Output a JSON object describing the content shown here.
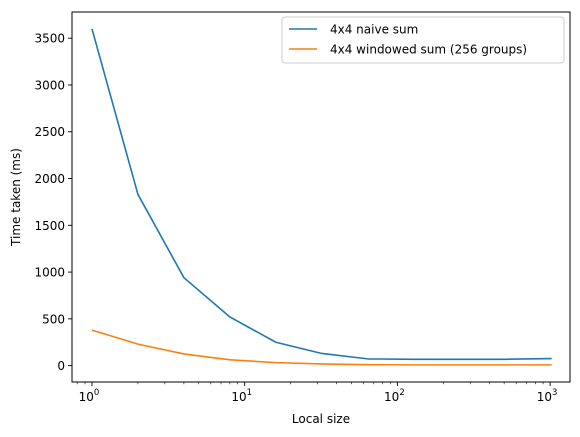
{
  "chart_data": {
    "type": "line",
    "title": "",
    "xlabel": "Local size",
    "ylabel": "Time taken (ms)",
    "xscale": "log",
    "xlim": [
      0.74,
      1350
    ],
    "ylim": [
      -175,
      3780
    ],
    "xticks": [
      {
        "value": 1,
        "base": "10",
        "exp": "0"
      },
      {
        "value": 10,
        "base": "10",
        "exp": "1"
      },
      {
        "value": 100,
        "base": "10",
        "exp": "2"
      },
      {
        "value": 1000,
        "base": "10",
        "exp": "3"
      }
    ],
    "yticks": [
      0,
      500,
      1000,
      1500,
      2000,
      2500,
      3000,
      3500
    ],
    "ytick_labels": [
      "0",
      "500",
      "1000",
      "1500",
      "2000",
      "2500",
      "3000",
      "3500"
    ],
    "grid": false,
    "legend_position": "top-right",
    "x": [
      1,
      2,
      4,
      8,
      16,
      32,
      64,
      128,
      256,
      512,
      1024
    ],
    "series": [
      {
        "name": "4x4 naive sum",
        "color": "#1f77b4",
        "values": [
          3600,
          1830,
          940,
          520,
          250,
          130,
          72,
          68,
          68,
          68,
          75
        ]
      },
      {
        "name": "4x4 windowed sum (256 groups)",
        "color": "#ff7f0e",
        "values": [
          380,
          230,
          125,
          62,
          32,
          18,
          10,
          8,
          8,
          8,
          8
        ]
      }
    ]
  }
}
